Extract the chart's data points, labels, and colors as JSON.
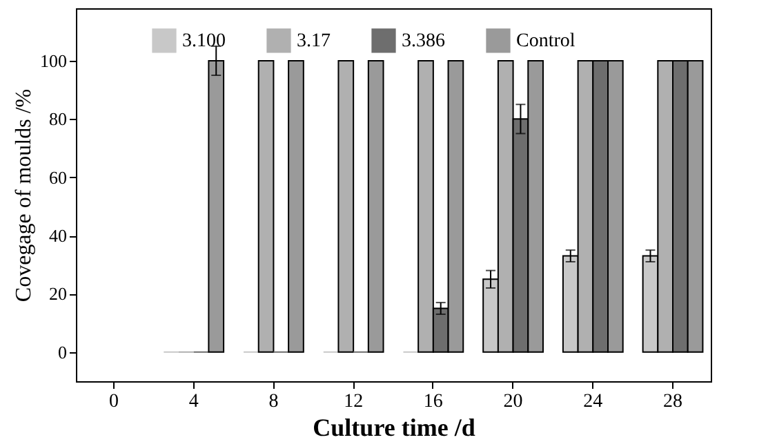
{
  "chart_data": {
    "type": "bar",
    "xlabel": "Culture time /d",
    "ylabel": "Covegage of moulds /%",
    "categories": [
      "0",
      "4",
      "8",
      "12",
      "16",
      "20",
      "24",
      "28"
    ],
    "series": [
      {
        "name": "3.100",
        "color": "#c8c8c8",
        "values": [
          null,
          0,
          0,
          0,
          0,
          25,
          33,
          33
        ],
        "errors": [
          null,
          null,
          null,
          null,
          null,
          3,
          2,
          2
        ]
      },
      {
        "name": "3.17",
        "color": "#b0b0b0",
        "values": [
          null,
          0,
          100,
          100,
          100,
          100,
          100,
          100
        ]
      },
      {
        "name": "3.386",
        "color": "#6e6e6e",
        "values": [
          null,
          0,
          0,
          0,
          15,
          80,
          100,
          100
        ],
        "errors": [
          null,
          null,
          null,
          null,
          2,
          5,
          null,
          null
        ]
      },
      {
        "name": "Control",
        "color": "#9a9a9a",
        "values": [
          null,
          100,
          100,
          100,
          100,
          100,
          100,
          100
        ],
        "errors": [
          null,
          5,
          null,
          null,
          null,
          null,
          null,
          null
        ]
      }
    ],
    "ylim": [
      -10,
      118
    ],
    "yticks": [
      0,
      20,
      40,
      60,
      80,
      100
    ],
    "grid": false,
    "legend": "top"
  }
}
